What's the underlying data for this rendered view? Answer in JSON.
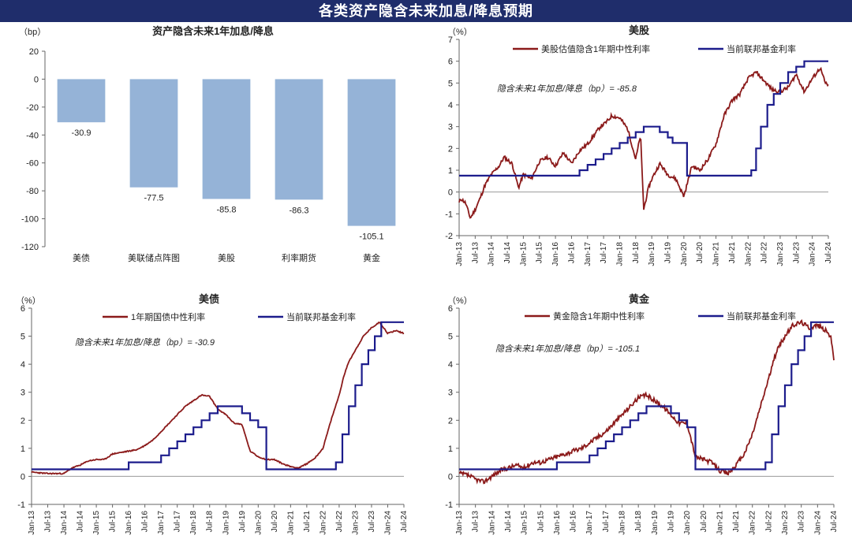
{
  "page_title": "各类资产隐含未来加息/降息预期",
  "x_dates": [
    "Jan-13",
    "Jul-13",
    "Jan-14",
    "Jul-14",
    "Jan-15",
    "Jul-15",
    "Jan-16",
    "Jul-16",
    "Jan-17",
    "Jul-17",
    "Jan-18",
    "Jul-18",
    "Jan-19",
    "Jul-19",
    "Jan-20",
    "Jul-20",
    "Jan-21",
    "Jul-21",
    "Jan-22",
    "Jul-22",
    "Jan-23",
    "Jul-23",
    "Jan-24",
    "Jul-24"
  ],
  "colors": {
    "banner": "#1f2d6b",
    "bar": "#95b3d7",
    "red": "#8b1a1a",
    "blue": "#1c1c8c"
  },
  "chart_data": [
    {
      "id": "bar",
      "type": "bar",
      "title": "资产隐含未来1年加息/降息",
      "unit": "（bp）",
      "categories": [
        "美债",
        "美联储点阵图",
        "美股",
        "利率期货",
        "黄金"
      ],
      "values": [
        -30.9,
        -77.5,
        -85.8,
        -86.3,
        -105.1
      ],
      "value_labels": [
        "-30.9",
        "-77.5",
        "-85.8",
        "-86.3",
        "-105.1"
      ],
      "ylim": [
        -120,
        20
      ],
      "yticks": [
        "20",
        "0",
        "-20",
        "-40",
        "-60",
        "-80",
        "-100",
        "-120"
      ]
    },
    {
      "id": "stocks",
      "type": "line",
      "title": "美股",
      "unit": "（%）",
      "ylim": [
        -2,
        7
      ],
      "yticks": [
        "7",
        "6",
        "5",
        "4",
        "3",
        "2",
        "1",
        "0",
        "-1",
        "-2"
      ],
      "annotation": "隐含未来1年加息/降息（bp）= -85.8",
      "series": [
        {
          "name": "美股估值隐含1年期中性利率",
          "color": "#8b1a1a",
          "noise": 0.17,
          "x": [
            0,
            0.1,
            0.4,
            0.7,
            1.0,
            1.3,
            1.6,
            2.0,
            2.5,
            2.8,
            3.3,
            3.7,
            4.0,
            4.5,
            5.0,
            5.5,
            6.0,
            6.5,
            7.0,
            7.5,
            8.0,
            8.5,
            8.8,
            9.0,
            9.15,
            9.3,
            9.5,
            10.0,
            10.5,
            11.0,
            11.3,
            11.5,
            11.8,
            12.0,
            12.5,
            13.0,
            13.5,
            14.0,
            14.5,
            15.0,
            15.5,
            16.0,
            16.5,
            17.0,
            17.5,
            18.0,
            18.5,
            19.0,
            19.5,
            20.0,
            20.5,
            21.0,
            21.5,
            22.0,
            22.5,
            22.8,
            23.0
          ],
          "y": [
            -0.5,
            -0.3,
            -0.5,
            -1.2,
            -0.8,
            -0.3,
            0.3,
            0.8,
            1.2,
            1.6,
            1.3,
            0.2,
            0.8,
            0.6,
            1.4,
            1.6,
            1.2,
            1.8,
            1.3,
            1.9,
            2.2,
            2.7,
            3.0,
            3.1,
            3.2,
            3.3,
            3.5,
            3.4,
            2.9,
            1.5,
            2.6,
            -0.8,
            0.2,
            0.6,
            1.3,
            0.8,
            0.6,
            -0.2,
            1.2,
            1.0,
            1.5,
            2.2,
            3.5,
            4.2,
            4.5,
            5.2,
            5.5,
            5.1,
            4.7,
            4.6,
            4.8,
            5.4,
            4.6,
            5.2,
            5.7,
            5.0,
            4.9
          ]
        },
        {
          "name": "当前联邦基金利率",
          "color": "#1c1c8c",
          "steps": [
            [
              0,
              0.75
            ],
            [
              7.5,
              1.0
            ],
            [
              8,
              1.25
            ],
            [
              8.5,
              1.5
            ],
            [
              9,
              1.75
            ],
            [
              9.5,
              2.0
            ],
            [
              10,
              2.25
            ],
            [
              10.5,
              2.5
            ],
            [
              11,
              2.75
            ],
            [
              11.5,
              3.0
            ],
            [
              12.5,
              2.75
            ],
            [
              13,
              2.5
            ],
            [
              13.3,
              2.25
            ],
            [
              14.2,
              0.75
            ],
            [
              18.2,
              1.0
            ],
            [
              18.5,
              2.0
            ],
            [
              18.8,
              3.0
            ],
            [
              19.2,
              4.0
            ],
            [
              19.6,
              4.5
            ],
            [
              20,
              5.0
            ],
            [
              20.5,
              5.5
            ],
            [
              21,
              5.75
            ],
            [
              21.5,
              6.0
            ],
            [
              23,
              6.0
            ]
          ]
        }
      ]
    },
    {
      "id": "treasury",
      "type": "line",
      "title": "美债",
      "unit": "（%）",
      "ylim": [
        -1,
        6
      ],
      "yticks": [
        "6",
        "5",
        "4",
        "3",
        "2",
        "1",
        "0",
        "-1"
      ],
      "annotation": "隐含未来1年加息/降息（bp）= -30.9",
      "series": [
        {
          "name": "1年期国债中性利率",
          "color": "#8b1a1a",
          "noise": 0.04,
          "x": [
            0,
            1,
            2,
            2.5,
            3,
            3.5,
            4,
            4.5,
            5,
            5.5,
            6,
            6.5,
            7,
            7.5,
            8,
            8.5,
            9,
            9.5,
            10,
            10.5,
            11,
            11.5,
            12,
            12.5,
            13,
            13.5,
            14,
            14.5,
            15,
            15.5,
            16,
            16.5,
            17,
            17.5,
            18,
            18.5,
            19,
            19.3,
            19.6,
            20,
            20.5,
            21,
            21.5,
            22,
            22.5,
            23
          ],
          "y": [
            0.15,
            0.1,
            0.1,
            0.3,
            0.4,
            0.55,
            0.6,
            0.6,
            0.8,
            0.85,
            0.9,
            0.95,
            1.1,
            1.3,
            1.6,
            1.9,
            2.2,
            2.5,
            2.7,
            2.9,
            2.85,
            2.4,
            2.2,
            1.9,
            1.85,
            0.9,
            0.7,
            0.6,
            0.6,
            0.45,
            0.35,
            0.3,
            0.45,
            0.65,
            1.0,
            2.0,
            2.9,
            3.6,
            4.1,
            4.5,
            5.0,
            5.3,
            5.5,
            5.1,
            5.2,
            5.1
          ]
        },
        {
          "name": "当前联邦基金利率",
          "color": "#1c1c8c",
          "steps": [
            [
              0,
              0.25
            ],
            [
              6,
              0.5
            ],
            [
              8,
              0.75
            ],
            [
              8.5,
              1.0
            ],
            [
              9,
              1.25
            ],
            [
              9.5,
              1.5
            ],
            [
              10,
              1.75
            ],
            [
              10.5,
              2.0
            ],
            [
              11,
              2.25
            ],
            [
              11.5,
              2.5
            ],
            [
              13,
              2.25
            ],
            [
              13.5,
              2.0
            ],
            [
              14,
              1.75
            ],
            [
              14.5,
              0.25
            ],
            [
              18.8,
              0.5
            ],
            [
              19.2,
              1.5
            ],
            [
              19.6,
              2.5
            ],
            [
              20,
              3.25
            ],
            [
              20.4,
              4.0
            ],
            [
              20.8,
              4.5
            ],
            [
              21.2,
              5.0
            ],
            [
              21.6,
              5.5
            ],
            [
              23,
              5.5
            ]
          ]
        }
      ]
    },
    {
      "id": "gold",
      "type": "line",
      "title": "黄金",
      "unit": "（%）",
      "ylim": [
        -1,
        6
      ],
      "yticks": [
        "6",
        "5",
        "4",
        "3",
        "2",
        "1",
        "0",
        "-1"
      ],
      "annotation": "隐含未来1年加息/降息（bp）= -105.1",
      "series": [
        {
          "name": "黄金隐含1年期中性利率",
          "color": "#8b1a1a",
          "noise": 0.16,
          "x": [
            0,
            0.5,
            1.0,
            1.5,
            2.0,
            2.5,
            3.0,
            3.5,
            4.0,
            4.5,
            5.0,
            5.5,
            6.0,
            6.5,
            7.0,
            7.5,
            8.0,
            8.5,
            9.0,
            9.5,
            10.0,
            10.5,
            11.0,
            11.5,
            12.0,
            12.5,
            13.0,
            13.5,
            14.0,
            14.5,
            15.0,
            15.5,
            16.0,
            16.5,
            17.0,
            17.5,
            18.0,
            18.5,
            19.0,
            19.5,
            20.0,
            20.5,
            21.0,
            21.5,
            22.0,
            22.5,
            22.8,
            23.0
          ],
          "y": [
            0.1,
            0.05,
            -0.1,
            -0.2,
            0.0,
            0.2,
            0.3,
            0.4,
            0.3,
            0.5,
            0.5,
            0.6,
            0.7,
            0.8,
            0.9,
            1.0,
            1.2,
            1.4,
            1.6,
            1.9,
            2.2,
            2.5,
            2.8,
            2.9,
            2.7,
            2.5,
            2.2,
            1.9,
            1.9,
            0.7,
            0.6,
            0.5,
            0.2,
            0.1,
            0.4,
            0.8,
            1.5,
            2.5,
            3.5,
            4.5,
            5.0,
            5.4,
            5.5,
            5.3,
            5.4,
            5.2,
            5.0,
            4.2
          ]
        },
        {
          "name": "当前联邦基金利率",
          "color": "#1c1c8c",
          "steps": [
            [
              0,
              0.25
            ],
            [
              6,
              0.5
            ],
            [
              8,
              0.75
            ],
            [
              8.5,
              1.0
            ],
            [
              9,
              1.25
            ],
            [
              9.5,
              1.5
            ],
            [
              10,
              1.75
            ],
            [
              10.5,
              2.0
            ],
            [
              11,
              2.25
            ],
            [
              11.5,
              2.5
            ],
            [
              13,
              2.25
            ],
            [
              13.5,
              2.0
            ],
            [
              14,
              1.75
            ],
            [
              14.5,
              0.25
            ],
            [
              18.8,
              0.5
            ],
            [
              19.2,
              1.5
            ],
            [
              19.6,
              2.5
            ],
            [
              20,
              3.25
            ],
            [
              20.4,
              4.0
            ],
            [
              20.8,
              4.5
            ],
            [
              21.2,
              5.0
            ],
            [
              21.6,
              5.5
            ],
            [
              23,
              5.5
            ]
          ]
        }
      ]
    }
  ]
}
